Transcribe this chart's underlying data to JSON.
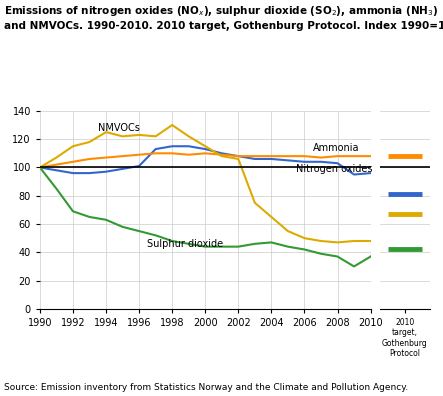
{
  "source": "Source: Emission inventory from Statistics Norway and the Climate and Pollution Agency.",
  "years": [
    1990,
    1991,
    1992,
    1993,
    1994,
    1995,
    1996,
    1997,
    1998,
    1999,
    2000,
    2001,
    2002,
    2003,
    2004,
    2005,
    2006,
    2007,
    2008,
    2009,
    2010
  ],
  "NOx": [
    100,
    98,
    96,
    96,
    97,
    99,
    101,
    113,
    115,
    115,
    113,
    110,
    108,
    106,
    106,
    105,
    104,
    104,
    103,
    95,
    96
  ],
  "SO2": [
    100,
    85,
    69,
    65,
    63,
    58,
    55,
    52,
    48,
    46,
    44,
    44,
    44,
    46,
    47,
    44,
    42,
    39,
    37,
    30,
    37
  ],
  "NH3": [
    100,
    102,
    104,
    106,
    107,
    108,
    109,
    110,
    110,
    109,
    110,
    109,
    108,
    108,
    108,
    108,
    108,
    107,
    108,
    108,
    108
  ],
  "NMVOCs": [
    100,
    107,
    115,
    118,
    125,
    122,
    123,
    122,
    130,
    122,
    115,
    108,
    106,
    75,
    65,
    55,
    50,
    48,
    47,
    48,
    48
  ],
  "NOx_target": 81,
  "SO2_target": 42,
  "NH3_target": 108,
  "NMVOCs_target": 67,
  "color_NOx": "#3366CC",
  "color_SO2": "#339933",
  "color_NH3": "#FF8C00",
  "color_NMVOCs": "#DDAA00",
  "ylim": [
    0,
    140
  ],
  "yticks": [
    0,
    20,
    40,
    60,
    80,
    100,
    120,
    140
  ],
  "label_NOx": "Nitrogen oxides",
  "label_SO2": "Sulphur dioxide",
  "label_NH3": "Ammonia",
  "label_NMVOCs": "NMVOCs",
  "title": "Emissions of nitrogen oxides (NO$_x$), sulphur dioxide (SO$_2$), ammonia (NH$_3$)\nand NMVOCs. 1990-2010. 2010 target, Gothenburg Protocol. Index 1990=100"
}
